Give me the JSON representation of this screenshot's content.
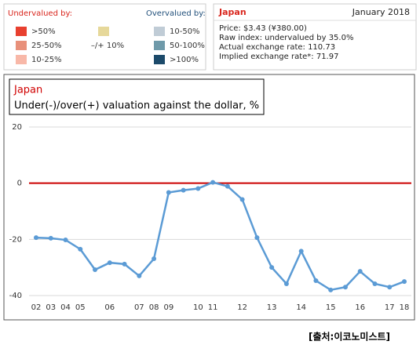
{
  "legend": {
    "undervalued_title": "Undervalued by:",
    "overvalued_title": "Overvalued by:",
    "undervalued": [
      {
        "label": ">50%",
        "color": "#e8402f"
      },
      {
        "label": "25-50%",
        "color": "#e8907a"
      },
      {
        "label": "10-25%",
        "color": "#f8b8a8"
      }
    ],
    "neutral": {
      "label": "–/+ 10%",
      "color": "#e6d89a"
    },
    "overvalued": [
      {
        "label": "10-50%",
        "color": "#c0ccd6"
      },
      {
        "label": "50-100%",
        "color": "#6f9aaa"
      },
      {
        "label": ">100%",
        "color": "#1c4a6a"
      }
    ]
  },
  "info": {
    "country": "Japan",
    "date": "January 2018",
    "lines": [
      "Price: $3.43 (¥380.00)",
      "Raw index: undervalued by 35.0%",
      "Actual exchange rate: 110.73",
      "Implied exchange rate*: 71.97"
    ]
  },
  "chart_data": {
    "type": "line",
    "country": "Japan",
    "title": "Under(-)/over(+) valuation against the dollar, %",
    "categories": [
      "02",
      "03",
      "04",
      "05",
      null,
      "06",
      null,
      "07",
      "08",
      "09",
      null,
      "10",
      "11",
      null,
      "12",
      null,
      "13",
      null,
      "14",
      null,
      "15",
      null,
      "16",
      null,
      "17",
      "18"
    ],
    "values": [
      -19.4,
      -19.6,
      -20.2,
      -23.5,
      -30.8,
      -28.3,
      -28.8,
      -33,
      -26.9,
      -3.3,
      -2.5,
      -1.9,
      0.3,
      -1.1,
      -5.8,
      -19.4,
      -30,
      -35.8,
      -24.2,
      -34.7,
      -38,
      -37,
      -31.4,
      -35.8,
      -37,
      -35
    ],
    "color": "#5b9bd5",
    "ylim": [
      -40,
      20
    ],
    "yticks": [
      -40,
      -20,
      0,
      20
    ],
    "grid": true,
    "zero_line_color": "#cc0000"
  },
  "source": "[출처:이코노미스트]"
}
